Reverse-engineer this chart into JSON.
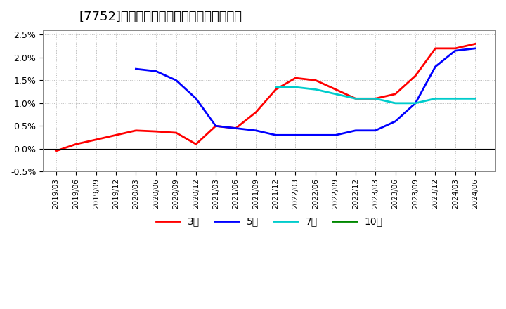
{
  "title": "[7752]　経常利益マージンの平均値の推移",
  "title_fontsize": 13,
  "background_color": "#ffffff",
  "grid_color": "#aaaaaa",
  "ylim": [
    -0.005,
    0.026
  ],
  "yticks": [
    -0.005,
    0.0,
    0.005,
    0.01,
    0.015,
    0.02,
    0.025
  ],
  "ytick_labels": [
    "-0.5%",
    "0.0%",
    "0.5%",
    "1.0%",
    "1.5%",
    "2.0%",
    "2.5%"
  ],
  "series": {
    "3年": {
      "color": "#ff0000",
      "dates": [
        "2019/03",
        "2019/06",
        "2019/09",
        "2019/12",
        "2020/03",
        "2020/06",
        "2020/09",
        "2020/12",
        "2021/03",
        "2021/06",
        "2021/09",
        "2021/12",
        "2022/03",
        "2022/06",
        "2022/09",
        "2022/12",
        "2023/03",
        "2023/06",
        "2023/09",
        "2023/12",
        "2024/03",
        "2024/06"
      ],
      "values": [
        -0.0005,
        0.001,
        0.002,
        0.003,
        0.004,
        0.0038,
        0.0035,
        0.001,
        0.005,
        0.0045,
        0.008,
        0.013,
        0.0155,
        0.015,
        0.013,
        0.011,
        0.011,
        0.012,
        0.016,
        0.022,
        0.022,
        0.023
      ]
    },
    "5年": {
      "color": "#0000ff",
      "dates": [
        "2019/03",
        "2019/06",
        "2019/09",
        "2019/12",
        "2020/03",
        "2020/06",
        "2020/09",
        "2020/12",
        "2021/03",
        "2021/06",
        "2021/09",
        "2021/12",
        "2022/03",
        "2022/06",
        "2022/09",
        "2022/12",
        "2023/03",
        "2023/06",
        "2023/09",
        "2023/12",
        "2024/03",
        "2024/06"
      ],
      "values": [
        null,
        null,
        null,
        null,
        0.0175,
        0.017,
        0.015,
        0.011,
        0.005,
        0.0045,
        0.004,
        0.003,
        0.003,
        0.003,
        0.003,
        0.004,
        0.004,
        0.006,
        0.01,
        0.018,
        0.0215,
        0.022
      ]
    },
    "7年": {
      "color": "#00cccc",
      "dates": [
        "2021/12",
        "2022/03",
        "2022/06",
        "2022/09",
        "2022/12",
        "2023/03",
        "2023/06",
        "2023/09",
        "2023/12",
        "2024/03",
        "2024/06"
      ],
      "values": [
        0.0135,
        0.0135,
        0.013,
        0.012,
        0.011,
        0.011,
        0.01,
        0.01,
        0.011,
        0.011,
        0.011
      ]
    },
    "10年": {
      "color": "#008800",
      "dates": [
        "2021/12",
        "2022/03",
        "2022/06",
        "2022/09",
        "2022/12",
        "2023/03",
        "2023/06",
        "2023/09",
        "2023/12",
        "2024/03",
        "2024/06"
      ],
      "values": [
        null,
        null,
        null,
        null,
        null,
        null,
        null,
        null,
        null,
        null,
        null
      ]
    }
  },
  "legend_labels": [
    "3年",
    "5年",
    "7年",
    "10年"
  ],
  "legend_colors": [
    "#ff0000",
    "#0000ff",
    "#00cccc",
    "#008800"
  ],
  "xtick_dates": [
    "2019/03",
    "2019/06",
    "2019/09",
    "2019/12",
    "2020/03",
    "2020/06",
    "2020/09",
    "2020/12",
    "2021/03",
    "2021/06",
    "2021/09",
    "2021/12",
    "2022/03",
    "2022/06",
    "2022/09",
    "2022/12",
    "2023/03",
    "2023/06",
    "2023/09",
    "2023/12",
    "2024/03",
    "2024/06"
  ]
}
